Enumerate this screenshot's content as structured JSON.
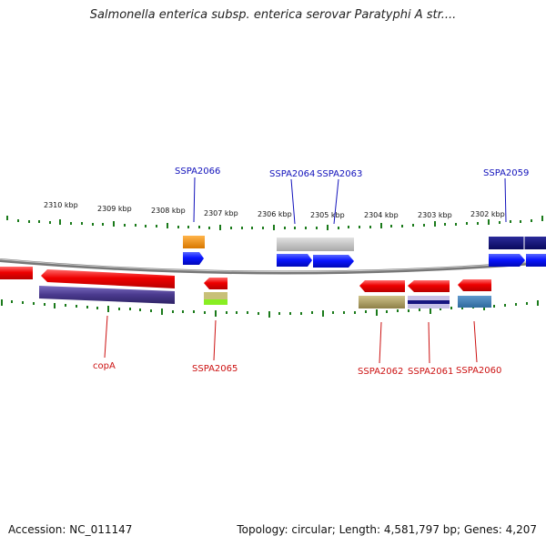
{
  "title": "Salmonella enterica subsp. enterica serovar Paratyphi A str....",
  "footer": {
    "accession": "Accession: NC_011147",
    "summary": "Topology: circular; Length: 4,581,797 bp; Genes: 4,207"
  },
  "scale": {
    "labels": [
      "2310 kbp",
      "2309 kbp",
      "2308 kbp",
      "2307 kbp",
      "2306 kbp",
      "2305 kbp",
      "2304 kbp",
      "2303 kbp",
      "2302 kbp"
    ]
  },
  "gene_labels": {
    "forward": [
      "SSPA2066",
      "SSPA2064",
      "SSPA2063",
      "SSPA2059"
    ],
    "reverse": [
      "copA",
      "SSPA2065",
      "SSPA2062",
      "SSPA2061",
      "SSPA2060"
    ]
  },
  "colors": {
    "forward_label": "#1111bb",
    "reverse_label": "#cc1111",
    "forward_gene": "#0a1aff",
    "reverse_gene": "#ee1111",
    "tick": "#1a7a1a",
    "backbone": "#888888"
  }
}
